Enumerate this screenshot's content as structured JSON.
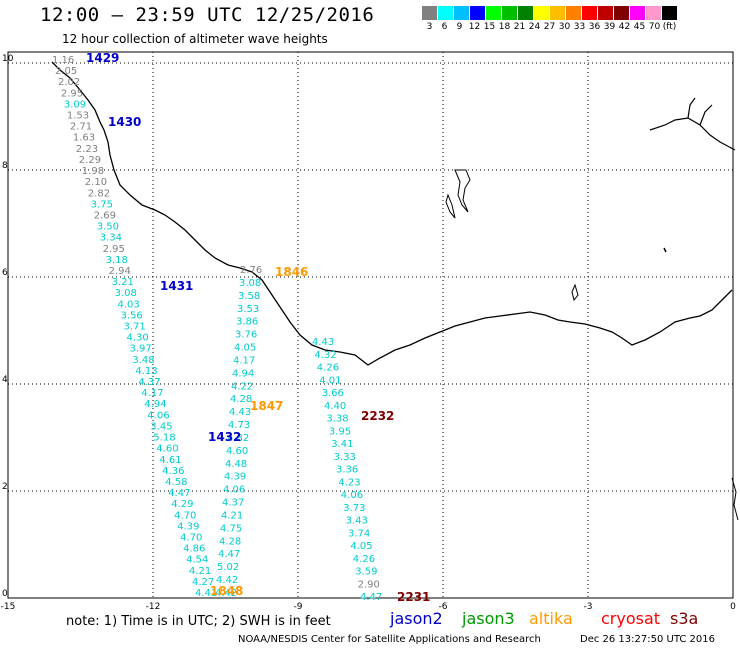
{
  "header": {
    "title": "12:00 – 23:59 UTC 12/25/2016",
    "subtitle": "12 hour collection of altimeter wave heights"
  },
  "color_scale": {
    "labels": [
      "3",
      "6",
      "9",
      "12",
      "15",
      "18",
      "21",
      "24",
      "27",
      "30",
      "33",
      "36",
      "39",
      "42",
      "45",
      "70",
      "(ft)"
    ],
    "colors": [
      "#808080",
      "#00ffff",
      "#00bfff",
      "#0000ff",
      "#00ff00",
      "#00bf00",
      "#008000",
      "#ffff00",
      "#ffbf00",
      "#ff8000",
      "#ff0000",
      "#c00000",
      "#800000",
      "#ff00ff",
      "#ff99cc",
      "#000000"
    ]
  },
  "axes": {
    "x_ticks": [
      "-15",
      "-12",
      "-9",
      "-6",
      "-3",
      "0"
    ],
    "y_ticks": [
      "0",
      "2",
      "4",
      "6",
      "8",
      "10"
    ]
  },
  "passes": [
    {
      "label": "1429",
      "color": "#0000cc"
    },
    {
      "label": "1430",
      "color": "#0000cc"
    },
    {
      "label": "1431",
      "color": "#0000cc"
    },
    {
      "label": "1432",
      "color": "#0000cc"
    },
    {
      "label": "1846",
      "color": "#ff9900"
    },
    {
      "label": "1847",
      "color": "#ff9900"
    },
    {
      "label": "1848",
      "color": "#ff9900"
    },
    {
      "label": "2232",
      "color": "#800000"
    },
    {
      "label": "2231",
      "color": "#800000"
    }
  ],
  "tracks": [
    {
      "name": "track-a",
      "points": [
        {
          "v": "1.16",
          "c": "#808080"
        },
        {
          "v": "2.05",
          "c": "#808080"
        },
        {
          "v": "2.02",
          "c": "#808080"
        },
        {
          "v": "2.95",
          "c": "#808080"
        },
        {
          "v": "3.09",
          "c": "#00cccc"
        },
        {
          "v": "1.53",
          "c": "#808080"
        },
        {
          "v": "2.71",
          "c": "#808080"
        },
        {
          "v": "1.63",
          "c": "#808080"
        },
        {
          "v": "2.23",
          "c": "#808080"
        },
        {
          "v": "2.29",
          "c": "#808080"
        },
        {
          "v": "1.98",
          "c": "#808080"
        },
        {
          "v": "2.10",
          "c": "#808080"
        },
        {
          "v": "2.82",
          "c": "#808080"
        },
        {
          "v": "3.75",
          "c": "#00cccc"
        },
        {
          "v": "2.69",
          "c": "#808080"
        },
        {
          "v": "3.50",
          "c": "#00cccc"
        },
        {
          "v": "3.34",
          "c": "#00cccc"
        },
        {
          "v": "2.95",
          "c": "#808080"
        },
        {
          "v": "3.18",
          "c": "#00cccc"
        },
        {
          "v": "2.94",
          "c": "#808080"
        },
        {
          "v": "3.21",
          "c": "#00cccc"
        },
        {
          "v": "3.08",
          "c": "#00cccc"
        },
        {
          "v": "4.03",
          "c": "#00cccc"
        },
        {
          "v": "3.56",
          "c": "#00cccc"
        },
        {
          "v": "3.71",
          "c": "#00cccc"
        },
        {
          "v": "4.30",
          "c": "#00cccc"
        },
        {
          "v": "3.97",
          "c": "#00cccc"
        },
        {
          "v": "3.48",
          "c": "#00cccc"
        },
        {
          "v": "4.13",
          "c": "#00cccc"
        },
        {
          "v": "4.37",
          "c": "#00cccc"
        },
        {
          "v": "4.17",
          "c": "#00cccc"
        },
        {
          "v": "4.94",
          "c": "#00cccc"
        },
        {
          "v": "4.06",
          "c": "#00cccc"
        },
        {
          "v": "3.45",
          "c": "#00cccc"
        },
        {
          "v": "5.18",
          "c": "#00cccc"
        },
        {
          "v": "4.60",
          "c": "#00cccc"
        },
        {
          "v": "4.61",
          "c": "#00cccc"
        },
        {
          "v": "4.36",
          "c": "#00cccc"
        },
        {
          "v": "4.58",
          "c": "#00cccc"
        },
        {
          "v": "4.47",
          "c": "#00cccc"
        },
        {
          "v": "4.29",
          "c": "#00cccc"
        },
        {
          "v": "4.70",
          "c": "#00cccc"
        },
        {
          "v": "4.39",
          "c": "#00cccc"
        },
        {
          "v": "4.70",
          "c": "#00cccc"
        },
        {
          "v": "4.86",
          "c": "#00cccc"
        },
        {
          "v": "4.54",
          "c": "#00cccc"
        },
        {
          "v": "4.21",
          "c": "#00cccc"
        },
        {
          "v": "4.27",
          "c": "#00cccc"
        },
        {
          "v": "4.41",
          "c": "#00cccc"
        }
      ]
    },
    {
      "name": "track-b",
      "points": [
        {
          "v": "2.76",
          "c": "#808080"
        },
        {
          "v": "3.08",
          "c": "#00cccc"
        },
        {
          "v": "3.58",
          "c": "#00cccc"
        },
        {
          "v": "3.53",
          "c": "#00cccc"
        },
        {
          "v": "3.86",
          "c": "#00cccc"
        },
        {
          "v": "3.76",
          "c": "#00cccc"
        },
        {
          "v": "4.05",
          "c": "#00cccc"
        },
        {
          "v": "4.17",
          "c": "#00cccc"
        },
        {
          "v": "4.94",
          "c": "#00cccc"
        },
        {
          "v": "4.22",
          "c": "#00cccc"
        },
        {
          "v": "4.28",
          "c": "#00cccc"
        },
        {
          "v": "4.43",
          "c": "#00cccc"
        },
        {
          "v": "4.73",
          "c": "#00cccc"
        },
        {
          "v": "4.82",
          "c": "#00cccc"
        },
        {
          "v": "4.60",
          "c": "#00cccc"
        },
        {
          "v": "4.48",
          "c": "#00cccc"
        },
        {
          "v": "4.39",
          "c": "#00cccc"
        },
        {
          "v": "4.06",
          "c": "#00cccc"
        },
        {
          "v": "4.37",
          "c": "#00cccc"
        },
        {
          "v": "4.21",
          "c": "#00cccc"
        },
        {
          "v": "4.75",
          "c": "#00cccc"
        },
        {
          "v": "4.28",
          "c": "#00cccc"
        },
        {
          "v": "4.47",
          "c": "#00cccc"
        },
        {
          "v": "5.02",
          "c": "#00cccc"
        },
        {
          "v": "4.42",
          "c": "#00cccc"
        },
        {
          "v": "4.42",
          "c": "#00cccc"
        }
      ]
    },
    {
      "name": "track-c",
      "points": [
        {
          "v": "4.43",
          "c": "#00cccc"
        },
        {
          "v": "4.32",
          "c": "#00cccc"
        },
        {
          "v": "4.26",
          "c": "#00cccc"
        },
        {
          "v": "4.01",
          "c": "#00cccc"
        },
        {
          "v": "3.66",
          "c": "#00cccc"
        },
        {
          "v": "4.40",
          "c": "#00cccc"
        },
        {
          "v": "3.38",
          "c": "#00cccc"
        },
        {
          "v": "3.95",
          "c": "#00cccc"
        },
        {
          "v": "3.41",
          "c": "#00cccc"
        },
        {
          "v": "3.33",
          "c": "#00cccc"
        },
        {
          "v": "3.36",
          "c": "#00cccc"
        },
        {
          "v": "4.23",
          "c": "#00cccc"
        },
        {
          "v": "4.06",
          "c": "#00cccc"
        },
        {
          "v": "3.73",
          "c": "#00cccc"
        },
        {
          "v": "3.43",
          "c": "#00cccc"
        },
        {
          "v": "3.74",
          "c": "#00cccc"
        },
        {
          "v": "4.05",
          "c": "#00cccc"
        },
        {
          "v": "4.26",
          "c": "#00cccc"
        },
        {
          "v": "3.59",
          "c": "#00cccc"
        },
        {
          "v": "2.90",
          "c": "#808080"
        },
        {
          "v": "4.47",
          "c": "#00cccc"
        }
      ]
    }
  ],
  "note": {
    "text": "note:  1) Time is in UTC;  2) SWH is in feet"
  },
  "satellites": [
    {
      "name": "jason2",
      "color": "#0000cc"
    },
    {
      "name": "jason3",
      "color": "#009900"
    },
    {
      "name": "altika",
      "color": "#ff9900"
    },
    {
      "name": "cryosat",
      "color": "#ff0000"
    },
    {
      "name": "s3a",
      "color": "#800000"
    }
  ],
  "footer": {
    "credit": "NOAA/NESDIS Center for Satellite Applications and Research",
    "timestamp": "Dec 26 13:27:50 UTC 2016"
  }
}
